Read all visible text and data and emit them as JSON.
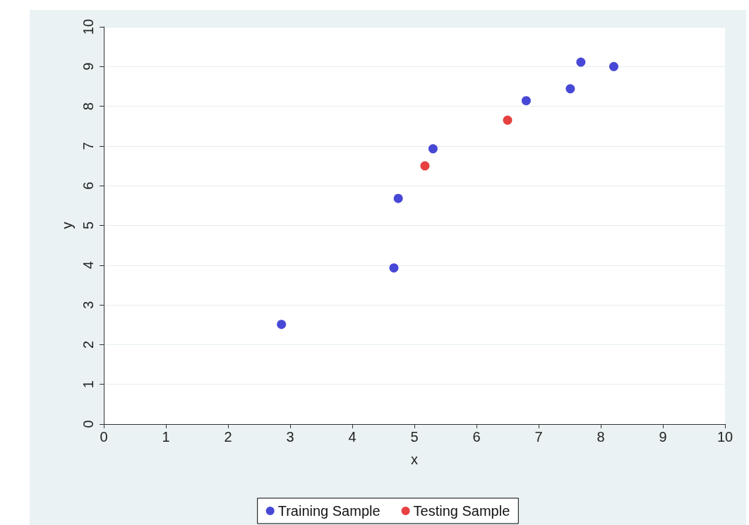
{
  "chart_data": {
    "type": "scatter",
    "xlabel": "x",
    "ylabel": "y",
    "xlim": [
      0,
      10
    ],
    "xticks": [
      0,
      1,
      2,
      3,
      4,
      5,
      6,
      7,
      8,
      9,
      10
    ],
    "ylim": [
      0,
      10
    ],
    "yticks": [
      0,
      1,
      2,
      3,
      4,
      5,
      6,
      7,
      8,
      9,
      10
    ],
    "grid": "y",
    "legend": "bottom",
    "marker": "circle",
    "series": [
      {
        "name": "Training Sample",
        "color": "#1a1acc",
        "x": [
          2.86,
          4.67,
          4.74,
          5.3,
          6.8,
          7.51,
          7.68,
          8.21
        ],
        "values": [
          2.51,
          3.93,
          5.68,
          6.93,
          8.14,
          8.44,
          9.11,
          9.0
        ]
      },
      {
        "name": "Testing Sample",
        "color": "#e01010",
        "x": [
          5.17,
          6.5
        ],
        "values": [
          6.5,
          7.65
        ]
      }
    ]
  }
}
